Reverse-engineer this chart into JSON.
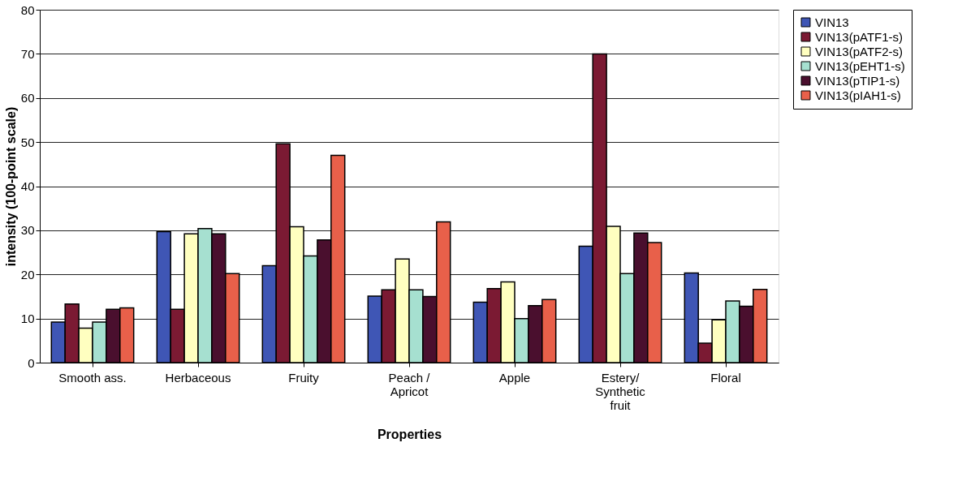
{
  "chart_data": {
    "type": "bar",
    "xlabel": "Properties",
    "ylabel": "intensity (100-point scale)",
    "categories": [
      "Smooth ass.",
      "Herbaceous",
      "Fruity",
      "Peach /\nApricot",
      "Apple",
      "Estery/\nSynthetic\nfruit",
      "Floral"
    ],
    "series": [
      {
        "name": "VIN13",
        "color": "#3f56b5",
        "values": [
          9.2,
          29.7,
          22.0,
          15.1,
          13.7,
          26.4,
          20.3
        ]
      },
      {
        "name": "VIN13(pATF1-s)",
        "color": "#7b1a33",
        "values": [
          13.3,
          12.1,
          49.6,
          16.5,
          16.8,
          70.0,
          4.4
        ]
      },
      {
        "name": "VIN13(pATF2-s)",
        "color": "#ffffc0",
        "values": [
          7.8,
          29.2,
          30.8,
          23.5,
          18.3,
          30.9,
          9.7
        ]
      },
      {
        "name": "VIN13(pEHT1-s)",
        "color": "#a6e0d0",
        "values": [
          9.2,
          30.4,
          24.2,
          16.5,
          10.0,
          20.2,
          14.0
        ]
      },
      {
        "name": "VIN13(pTIP1-s)",
        "color": "#4a0f2e",
        "values": [
          12.1,
          29.2,
          27.8,
          15.0,
          12.9,
          29.4,
          12.8
        ]
      },
      {
        "name": "VIN13(pIAH1-s)",
        "color": "#e8604a",
        "values": [
          12.4,
          20.2,
          47.0,
          31.9,
          14.3,
          27.2,
          16.6
        ]
      }
    ],
    "ylim": [
      0,
      80
    ],
    "yticks": [
      0,
      10,
      20,
      30,
      40,
      50,
      60,
      70,
      80
    ],
    "grid": "y",
    "legend": "right"
  }
}
